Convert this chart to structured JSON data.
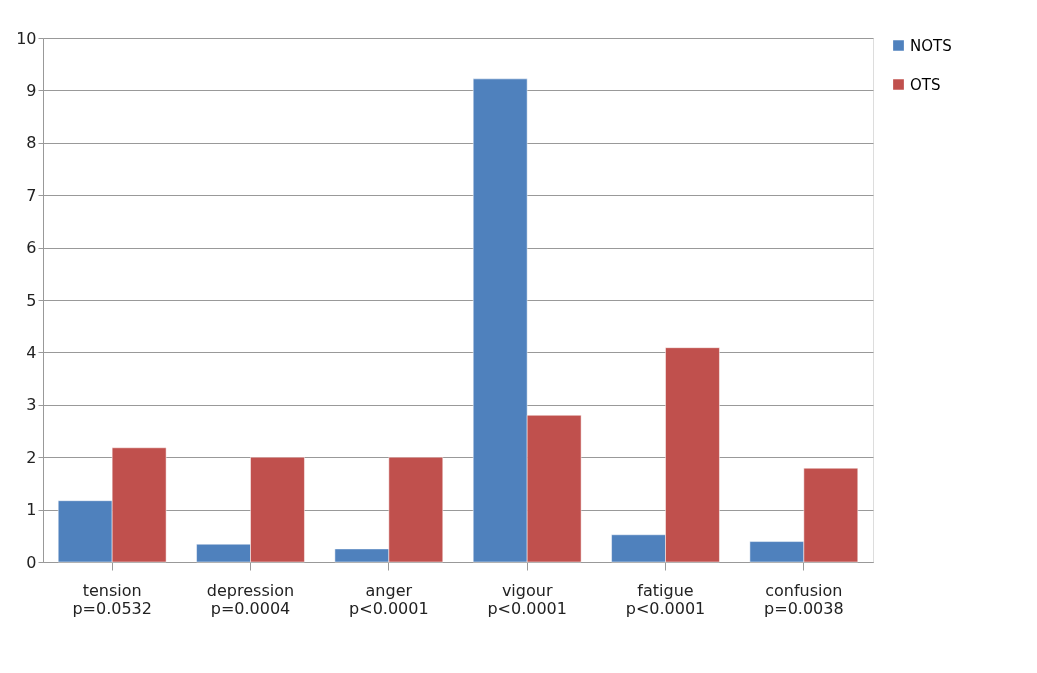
{
  "chart_data": {
    "type": "bar",
    "categories": [
      "tension\np=0.0532",
      "depression\np=0.0004",
      "anger\np<0.0001",
      "vigour\np<0.0001",
      "fatigue\np<0.0001",
      "confusion\np=0.0038"
    ],
    "series": [
      {
        "name": "NOTS",
        "color": "#4f81bd",
        "values": [
          1.17,
          0.34,
          0.25,
          9.22,
          0.52,
          0.39
        ]
      },
      {
        "name": "OTS",
        "color": "#c0504d",
        "values": [
          2.18,
          2.0,
          2.0,
          2.8,
          4.09,
          1.79
        ]
      }
    ],
    "ylim": [
      0,
      10
    ],
    "yticks": [
      0,
      1,
      2,
      3,
      4,
      5,
      6,
      7,
      8,
      9,
      10
    ],
    "grid": "y",
    "legend": "right"
  }
}
